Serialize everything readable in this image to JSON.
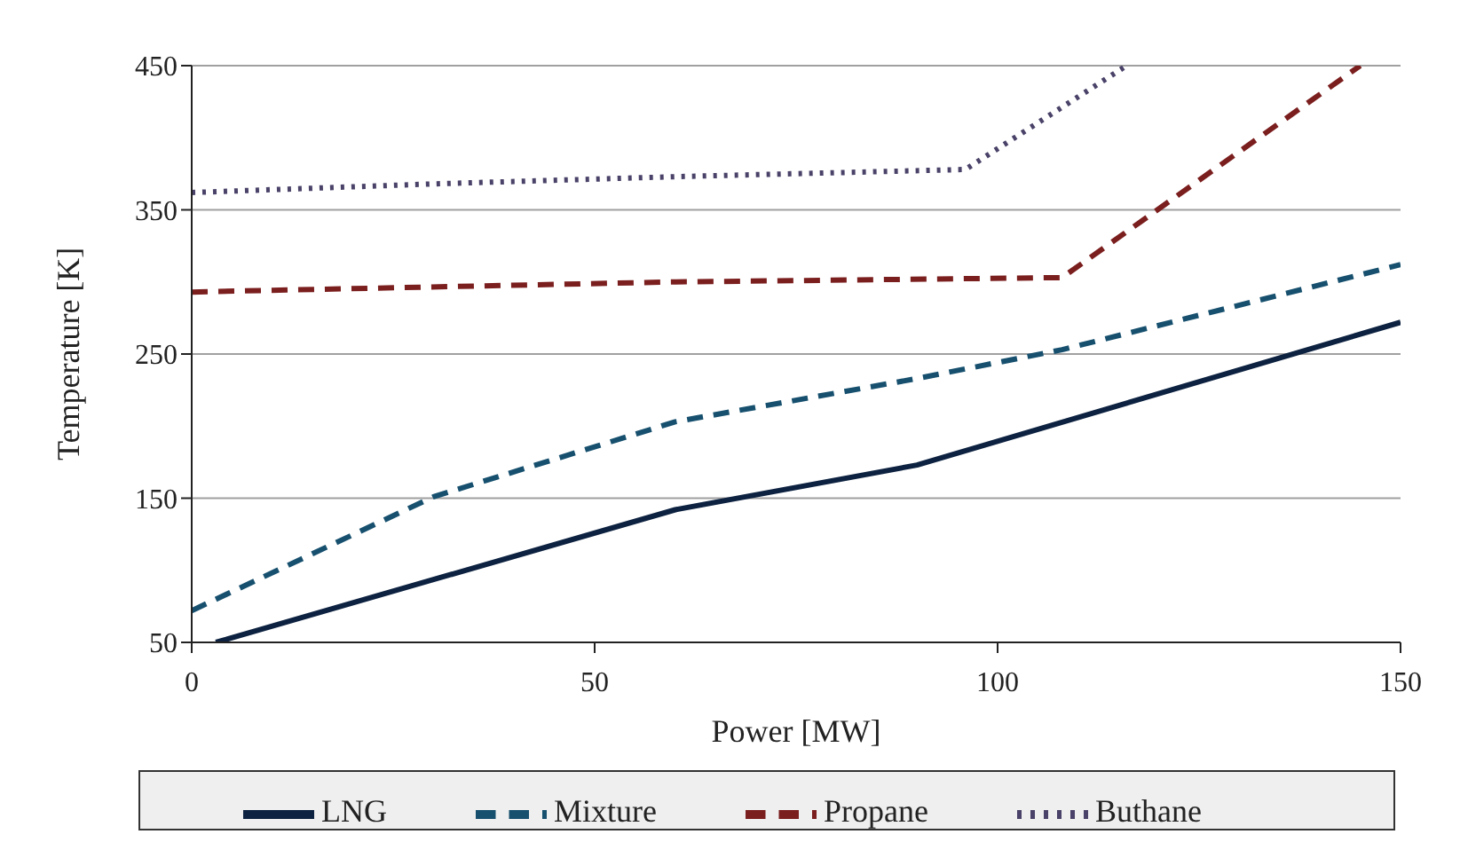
{
  "chart_data": {
    "type": "line",
    "xlabel": "Power [MW]",
    "ylabel": "Temperature [K]",
    "xlim": [
      0,
      150
    ],
    "ylim": [
      50,
      450
    ],
    "xticks": [
      0,
      50,
      100,
      150
    ],
    "yticks": [
      50,
      150,
      250,
      350,
      450
    ],
    "grid": "y",
    "legend": "bottom",
    "marker": "none",
    "series": [
      {
        "name": "LNG",
        "color": "#0d2240",
        "line_style": "solid",
        "x": [
          3,
          60,
          90,
          150
        ],
        "values": [
          50,
          142,
          173,
          272
        ]
      },
      {
        "name": "Mixture",
        "color": "#17506e",
        "line_style": "dashed",
        "x": [
          0,
          30,
          60,
          90,
          108,
          150
        ],
        "values": [
          72,
          151,
          203,
          233,
          253,
          312
        ]
      },
      {
        "name": "Propane",
        "color": "#7b1e1e",
        "line_style": "dashed",
        "x": [
          0,
          60,
          108,
          145
        ],
        "values": [
          293,
          300,
          303,
          450
        ]
      },
      {
        "name": "Buthane",
        "color": "#4a4268",
        "line_style": "dotted",
        "x": [
          0,
          30,
          60,
          96,
          116
        ],
        "values": [
          362,
          368,
          373,
          378,
          450
        ]
      }
    ]
  }
}
